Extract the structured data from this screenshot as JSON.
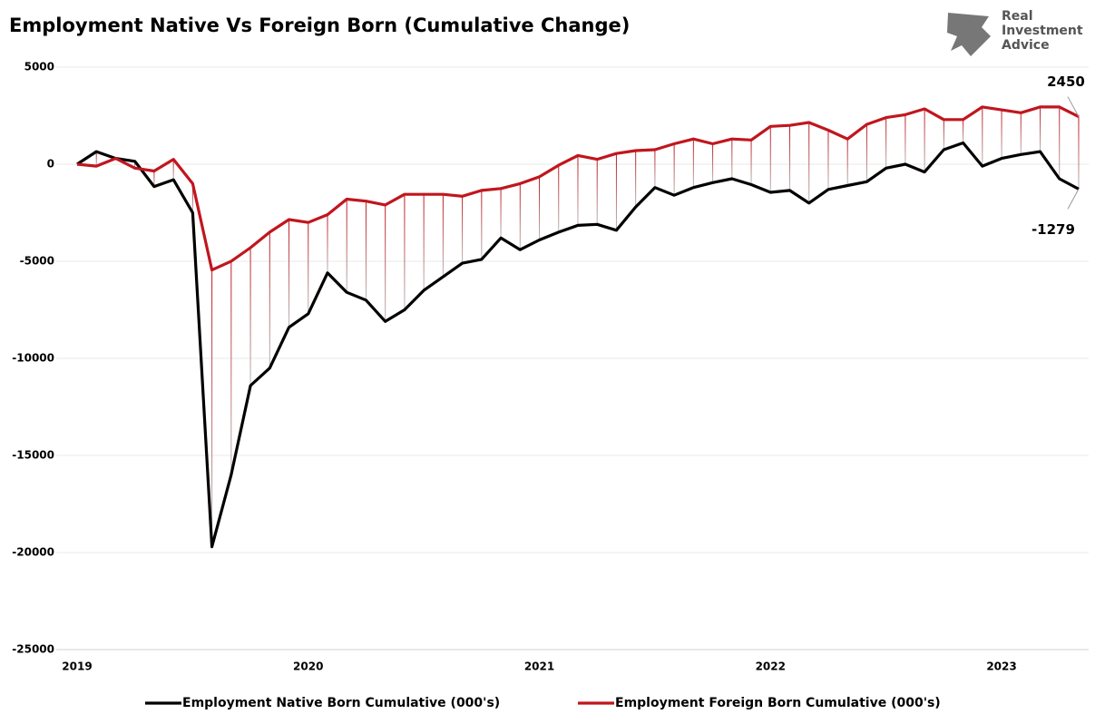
{
  "logo": {
    "lines": [
      "Real",
      "Investment",
      "Advice"
    ]
  },
  "chart_data": {
    "type": "line",
    "title": "Employment Native Vs Foreign Born (Cumulative Change)",
    "categories": [
      "2019",
      null,
      null,
      null,
      null,
      null,
      null,
      null,
      null,
      null,
      null,
      null,
      "2020",
      null,
      null,
      null,
      null,
      null,
      null,
      null,
      null,
      null,
      null,
      null,
      "2021",
      null,
      null,
      null,
      null,
      null,
      null,
      null,
      null,
      null,
      null,
      null,
      "2022",
      null,
      null,
      null,
      null,
      null,
      null,
      null,
      null,
      null,
      null,
      null,
      "2023",
      null,
      null,
      null,
      null
    ],
    "series": [
      {
        "name": "Employment Native Born Cumulative (000's)",
        "color": "#000000",
        "values": [
          0,
          650,
          300,
          150,
          -1150,
          -800,
          -2500,
          -19700,
          -16000,
          -11400,
          -10500,
          -8400,
          -7700,
          -5600,
          -6600,
          -7000,
          -8100,
          -7500,
          -6500,
          -5800,
          -5100,
          -4900,
          -3800,
          -4400,
          -3900,
          -3500,
          -3150,
          -3100,
          -3400,
          -2200,
          -1200,
          -1600,
          -1200,
          -950,
          -750,
          -1050,
          -1450,
          -1350,
          -2000,
          -1300,
          -1100,
          -900,
          -200,
          0,
          -400,
          750,
          1100,
          -100,
          300,
          500,
          650,
          -750,
          -1279
        ]
      },
      {
        "name": "Employment Foreign Born Cumulative (000's)",
        "color": "#c0161e",
        "values": [
          0,
          -100,
          300,
          -200,
          -350,
          250,
          -1000,
          -5450,
          -5000,
          -4300,
          -3500,
          -2850,
          -3000,
          -2600,
          -1800,
          -1900,
          -2100,
          -1550,
          -1550,
          -1550,
          -1650,
          -1350,
          -1250,
          -1000,
          -650,
          -50,
          450,
          250,
          550,
          700,
          750,
          1050,
          1300,
          1050,
          1300,
          1250,
          1950,
          2000,
          2150,
          1750,
          1300,
          2050,
          2400,
          2550,
          2850,
          2300,
          2300,
          2950,
          2800,
          2650,
          2950,
          2950,
          2450
        ]
      }
    ],
    "ylim": [
      -25000,
      5000
    ],
    "yticks": [
      -25000,
      -20000,
      -15000,
      -10000,
      -5000,
      0,
      5000
    ],
    "grid": true,
    "legend": "bottom"
  }
}
